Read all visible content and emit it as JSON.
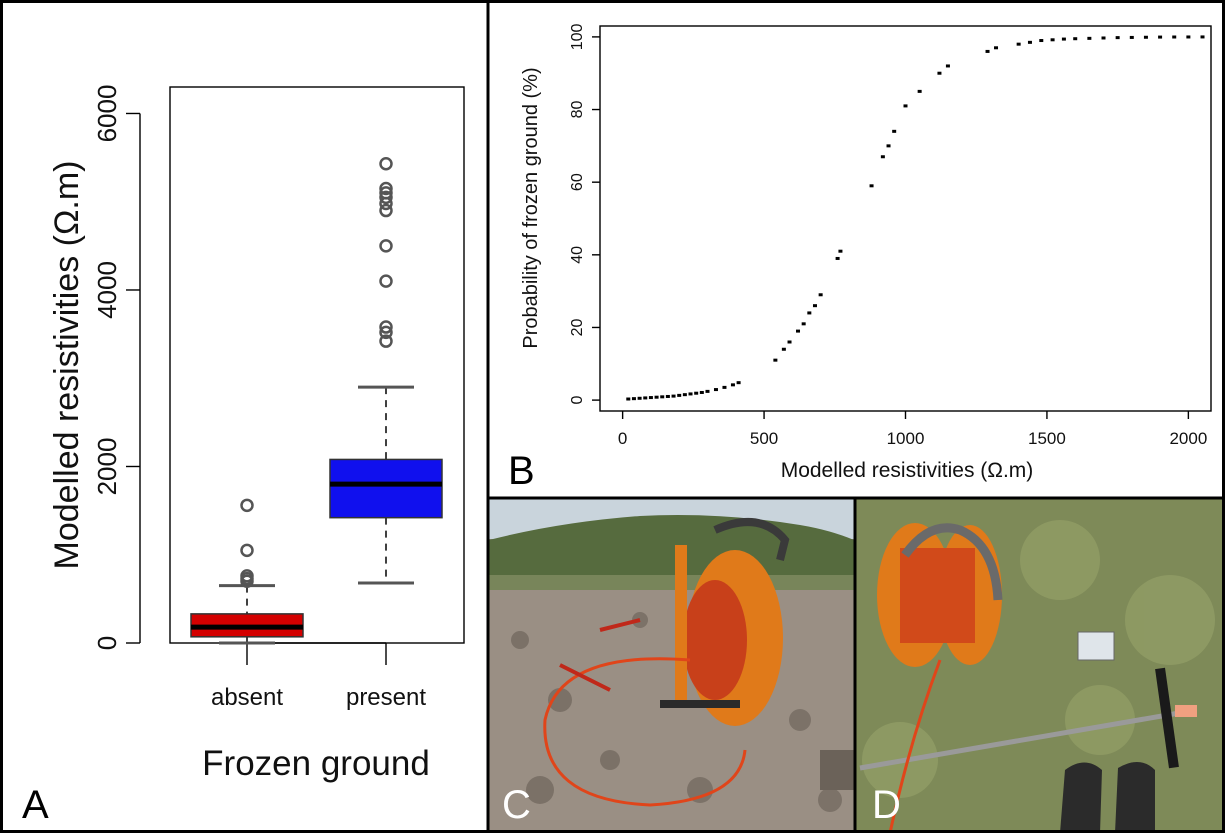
{
  "panels": {
    "A": {
      "label": "A"
    },
    "B": {
      "label": "B"
    },
    "C": {
      "label": "C"
    },
    "D": {
      "label": "D"
    }
  },
  "colors": {
    "absent_box": "#d40000",
    "present_box": "#1010ee",
    "points": "#000000"
  },
  "chart_data": [
    {
      "type": "box",
      "xlabel": "Frozen ground",
      "ylabel": "Modelled resistivities (Ω.m)",
      "ylim": [
        0,
        6300
      ],
      "yticks": [
        0,
        2000,
        4000,
        6000
      ],
      "ytick_labels": [
        "0",
        "2000",
        "4000",
        "6000"
      ],
      "categories": [
        "absent",
        "present"
      ],
      "boxes": [
        {
          "name": "absent",
          "color": "#d40000",
          "whisker_low": 0,
          "q1": 70,
          "median": 180,
          "q3": 330,
          "whisker_high": 650,
          "outliers": [
            700,
            730,
            760,
            1050,
            1560
          ]
        },
        {
          "name": "present",
          "color": "#1010ee",
          "whisker_low": 680,
          "q1": 1420,
          "median": 1800,
          "q3": 2080,
          "whisker_high": 2900,
          "outliers": [
            3420,
            3520,
            3580,
            4100,
            4500,
            4900,
            4980,
            5050,
            5100,
            5150,
            5430
          ]
        }
      ],
      "grid": false
    },
    {
      "type": "scatter",
      "xlabel": "Modelled resistivities (Ω.m)",
      "ylabel": "Probability of frozen ground (%)",
      "xlim": [
        -80,
        2080
      ],
      "ylim": [
        -3,
        103
      ],
      "xticks": [
        0,
        500,
        1000,
        1500,
        2000
      ],
      "yticks": [
        0,
        20,
        40,
        60,
        80,
        100
      ],
      "grid": false,
      "x": [
        20,
        40,
        60,
        80,
        100,
        120,
        140,
        160,
        180,
        200,
        220,
        240,
        260,
        280,
        300,
        330,
        360,
        390,
        410,
        540,
        570,
        590,
        620,
        640,
        660,
        680,
        700,
        760,
        770,
        880,
        920,
        940,
        960,
        1000,
        1050,
        1120,
        1150,
        1290,
        1320,
        1400,
        1440,
        1480,
        1520,
        1560,
        1600,
        1650,
        1700,
        1750,
        1800,
        1850,
        1900,
        1950,
        2000,
        2050
      ],
      "y": [
        0.3,
        0.4,
        0.5,
        0.6,
        0.7,
        0.8,
        0.9,
        1.0,
        1.1,
        1.3,
        1.5,
        1.7,
        1.9,
        2.1,
        2.4,
        2.9,
        3.5,
        4.2,
        4.8,
        11,
        14,
        16,
        19,
        21,
        24,
        26,
        29,
        39,
        41,
        59,
        67,
        70,
        74,
        81,
        85,
        90,
        92,
        96,
        97,
        98,
        98.5,
        99,
        99.2,
        99.4,
        99.5,
        99.6,
        99.7,
        99.8,
        99.85,
        99.9,
        99.95,
        99.97,
        99.98,
        99.99
      ]
    }
  ]
}
